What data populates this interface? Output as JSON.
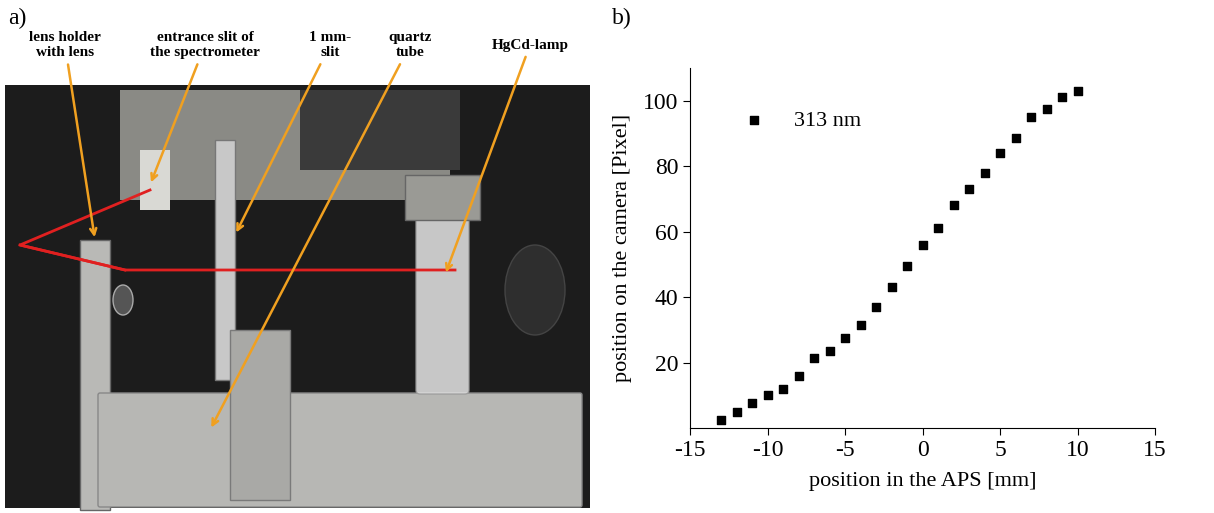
{
  "panel_labels": [
    "a)",
    "b)"
  ],
  "photo": {
    "annotations": [
      "lens holder\nwith lens",
      "entrance slit of\nthe spectrometer",
      "1 mm-\nslit",
      "quartz\ntube",
      "HgCd-lamp"
    ]
  },
  "chart_data": {
    "type": "scatter",
    "x_label": "position in the APS [mm]",
    "y_label": "position on the camera [Pixel]",
    "x": [
      -13,
      -12,
      -11,
      -10,
      -9,
      -8,
      -7,
      -6,
      -5,
      -4,
      -3,
      -2,
      -1,
      0,
      1,
      2,
      3,
      4,
      5,
      6,
      7,
      8,
      9,
      10
    ],
    "xlim": [
      -15,
      15
    ],
    "xticks": [
      -15,
      -10,
      -5,
      0,
      5,
      10,
      15
    ],
    "ylim": [
      0,
      110
    ],
    "yticks": [
      20,
      40,
      60,
      80,
      100
    ],
    "legend": "upper left",
    "series": [
      {
        "name": "313 nm",
        "color": "#000000",
        "marker": "square",
        "values": [
          2.5,
          5,
          7.5,
          10,
          12,
          16,
          21.5,
          23.5,
          27.5,
          31.5,
          37,
          43,
          49.5,
          56,
          61,
          68,
          73,
          78,
          84,
          88.5,
          95,
          97.5,
          101,
          103
        ]
      }
    ]
  }
}
